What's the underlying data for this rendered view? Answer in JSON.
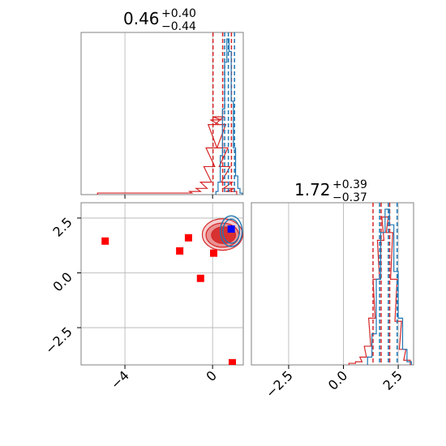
{
  "colors": {
    "red": "#d62728",
    "blue": "#1f77b4",
    "marker_red": "#ff0000",
    "marker_blue": "#0000ff",
    "grid": "#b0b0b0",
    "frame": "#808080"
  },
  "chart_data": [
    {
      "type": "histogram",
      "panel": "top-left",
      "title": {
        "value": "0.46",
        "plus": "+0.40",
        "minus": "−0.44"
      },
      "xlim": [
        -6.0,
        1.4
      ],
      "grid_x": [
        -4,
        0
      ],
      "series": [
        {
          "color": "#d62728",
          "bins": [
            [
              -5.0,
              0.01
            ],
            [
              -4.5,
              0.01
            ],
            [
              -1.6,
              0.01
            ],
            [
              -1.2,
              0.01
            ],
            [
              -0.8,
              0.02
            ],
            [
              -0.5,
              0.04
            ],
            [
              -0.3,
              0.08
            ],
            [
              -0.15,
              0.18
            ],
            [
              -0.05,
              0.3
            ],
            [
              0.05,
              0.45
            ],
            [
              0.15,
              0.48
            ],
            [
              0.25,
              0.5
            ],
            [
              0.35,
              0.45
            ],
            [
              0.45,
              0.3
            ],
            [
              0.55,
              0.18
            ],
            [
              0.65,
              0.08
            ],
            [
              0.75,
              0.04
            ],
            [
              0.85,
              0.02
            ]
          ],
          "quantiles": [
            0.02,
            0.46,
            0.86
          ]
        },
        {
          "color": "#1f77b4",
          "bins": [
            [
              0.2,
              0.02
            ],
            [
              0.3,
              0.08
            ],
            [
              0.4,
              0.25
            ],
            [
              0.5,
              0.55
            ],
            [
              0.6,
              0.85
            ],
            [
              0.7,
              1.0
            ],
            [
              0.8,
              0.92
            ],
            [
              0.9,
              0.6
            ],
            [
              1.0,
              0.3
            ],
            [
              1.1,
              0.12
            ],
            [
              1.2,
              0.04
            ],
            [
              1.3,
              0.01
            ]
          ],
          "quantiles": [
            0.55,
            0.72,
            1.0
          ]
        }
      ]
    },
    {
      "type": "scatter",
      "panel": "bottom-left",
      "xlim": [
        -6.0,
        1.4
      ],
      "ylim": [
        -4.2,
        3.2
      ],
      "xticks": [
        -4,
        0
      ],
      "xticklabels": [
        "−4",
        "0"
      ],
      "yticks": [
        -2.5,
        0.0,
        2.5
      ],
      "yticklabels": [
        "−2.5",
        "0.0",
        "2.5"
      ],
      "contours": [
        {
          "color": "#d62728",
          "center": [
            0.5,
            1.72
          ],
          "radius": [
            0.55,
            0.38
          ],
          "level": "outer"
        },
        {
          "color": "#d62728",
          "center": [
            0.45,
            1.72
          ],
          "radius": [
            0.75,
            0.55
          ],
          "level": "mid"
        },
        {
          "color": "#d62728",
          "center": [
            0.45,
            1.75
          ],
          "radius": [
            0.92,
            0.72
          ],
          "level": "inner"
        },
        {
          "color": "#1f77b4",
          "center": [
            0.85,
            1.9
          ],
          "radius": [
            0.38,
            0.55
          ],
          "level": "outer"
        },
        {
          "color": "#1f77b4",
          "center": [
            0.85,
            1.9
          ],
          "radius": [
            0.5,
            0.7
          ],
          "level": "inner"
        }
      ],
      "red_markers": [
        [
          -4.9,
          1.45
        ],
        [
          -1.5,
          1.0
        ],
        [
          -1.1,
          1.6
        ],
        [
          0.05,
          0.9
        ],
        [
          -0.55,
          -0.25
        ],
        [
          0.9,
          -4.1
        ]
      ],
      "blue_markers": [
        [
          0.85,
          2.0
        ]
      ]
    },
    {
      "type": "histogram",
      "panel": "bottom-right",
      "title": {
        "value": "1.72",
        "plus": "+0.39",
        "minus": "−0.37"
      },
      "xlim": [
        -4.2,
        3.2
      ],
      "xticks": [
        -2.5,
        0.0,
        2.5
      ],
      "xticklabels": [
        "−2.5",
        "0.0",
        "2.5"
      ],
      "series": [
        {
          "color": "#d62728",
          "bins": [
            [
              0.4,
              0.01
            ],
            [
              0.7,
              0.02
            ],
            [
              0.9,
              0.05
            ],
            [
              1.1,
              0.12
            ],
            [
              1.3,
              0.3
            ],
            [
              1.5,
              0.55
            ],
            [
              1.7,
              0.8
            ],
            [
              1.9,
              0.95
            ],
            [
              2.1,
              0.85
            ],
            [
              2.3,
              0.55
            ],
            [
              2.5,
              0.28
            ],
            [
              2.7,
              0.1
            ],
            [
              2.9,
              0.03
            ]
          ],
          "quantiles": [
            1.35,
            1.72,
            2.11
          ]
        },
        {
          "color": "#1f77b4",
          "bins": [
            [
              1.2,
              0.05
            ],
            [
              1.4,
              0.2
            ],
            [
              1.6,
              0.55
            ],
            [
              1.8,
              0.85
            ],
            [
              2.0,
              1.0
            ],
            [
              2.2,
              0.9
            ],
            [
              2.4,
              0.6
            ],
            [
              2.6,
              0.3
            ],
            [
              2.8,
              0.1
            ],
            [
              3.0,
              0.02
            ]
          ],
          "quantiles": [
            1.65,
            2.05,
            2.45
          ]
        }
      ]
    }
  ]
}
